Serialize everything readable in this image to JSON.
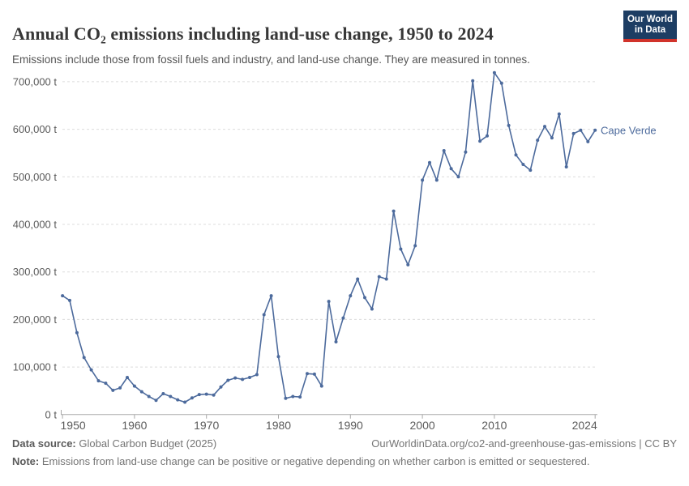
{
  "header": {
    "title": "Annual CO₂ emissions including land-use change, 1950 to 2024",
    "subtitle": "Emissions include those from fossil fuels and industry, and land-use change. They are measured in tonnes.",
    "logo": {
      "line1": "Our World",
      "line2": "in Data"
    }
  },
  "chart_data": {
    "type": "line",
    "title": "Annual CO₂ emissions including land-use change, 1950 to 2024",
    "xlabel": "",
    "ylabel": "",
    "xlim": [
      1950,
      2024
    ],
    "ylim": [
      0,
      720000
    ],
    "grid": "horizontal dashed",
    "legend_position": "end-of-line label",
    "unit": "t",
    "series": [
      {
        "name": "Cape Verde",
        "color": "#4C6A9C",
        "years": [
          1950,
          1951,
          1952,
          1953,
          1954,
          1955,
          1956,
          1957,
          1958,
          1959,
          1960,
          1961,
          1962,
          1963,
          1964,
          1965,
          1966,
          1967,
          1968,
          1969,
          1970,
          1971,
          1972,
          1973,
          1974,
          1975,
          1976,
          1977,
          1978,
          1979,
          1980,
          1981,
          1982,
          1983,
          1984,
          1985,
          1986,
          1987,
          1988,
          1989,
          1990,
          1991,
          1992,
          1993,
          1994,
          1995,
          1996,
          1997,
          1998,
          1999,
          2000,
          2001,
          2002,
          2003,
          2004,
          2005,
          2006,
          2007,
          2008,
          2009,
          2010,
          2011,
          2012,
          2013,
          2014,
          2015,
          2016,
          2017,
          2018,
          2019,
          2020,
          2021,
          2022,
          2023,
          2024
        ],
        "values": [
          250000,
          240000,
          172000,
          120000,
          94000,
          71000,
          66000,
          51000,
          56000,
          78000,
          60000,
          48000,
          38000,
          30000,
          44000,
          38000,
          31000,
          26000,
          35000,
          42000,
          43000,
          41000,
          58000,
          72000,
          77000,
          74000,
          78000,
          84000,
          210000,
          250000,
          122000,
          34000,
          38000,
          37000,
          86000,
          85000,
          60000,
          238000,
          153000,
          203000,
          250000,
          285000,
          246000,
          222000,
          290000,
          285000,
          428000,
          348000,
          315000,
          355000,
          493000,
          530000,
          493000,
          555000,
          517000,
          500000,
          552000,
          702000,
          575000,
          586000,
          719000,
          697000,
          608000,
          546000,
          526000,
          514000,
          577000,
          606000,
          582000,
          632000,
          521000,
          591000,
          598000,
          574000,
          598000
        ]
      }
    ],
    "x_ticks": [
      {
        "value": 1950,
        "label": "1950"
      },
      {
        "value": 1960,
        "label": "1960"
      },
      {
        "value": 1970,
        "label": "1970"
      },
      {
        "value": 1980,
        "label": "1980"
      },
      {
        "value": 1990,
        "label": "1990"
      },
      {
        "value": 2000,
        "label": "2000"
      },
      {
        "value": 2010,
        "label": "2010"
      },
      {
        "value": 2024,
        "label": "2024"
      }
    ],
    "y_ticks": [
      {
        "value": 0,
        "label": "0 t"
      },
      {
        "value": 100000,
        "label": "100,000 t"
      },
      {
        "value": 200000,
        "label": "200,000 t"
      },
      {
        "value": 300000,
        "label": "300,000 t"
      },
      {
        "value": 400000,
        "label": "400,000 t"
      },
      {
        "value": 500000,
        "label": "500,000 t"
      },
      {
        "value": 600000,
        "label": "600,000 t"
      },
      {
        "value": 700000,
        "label": "700,000 t"
      }
    ]
  },
  "footer": {
    "source_label": "Data source:",
    "source_text": " Global Carbon Budget (2025)",
    "link_text": "OurWorldinData.org/co2-and-greenhouse-gas-emissions | CC BY",
    "note_label": "Note:",
    "note_text": " Emissions from land-use change can be positive or negative depending on whether carbon is emitted or sequestered."
  },
  "colors": {
    "line": "#4C6A9C",
    "grid": "#dcdcdc",
    "axis": "#a8a8a8",
    "tick_text": "#5b5b5b",
    "logo_navy": "#1d3d63",
    "logo_red": "#d1332b"
  }
}
